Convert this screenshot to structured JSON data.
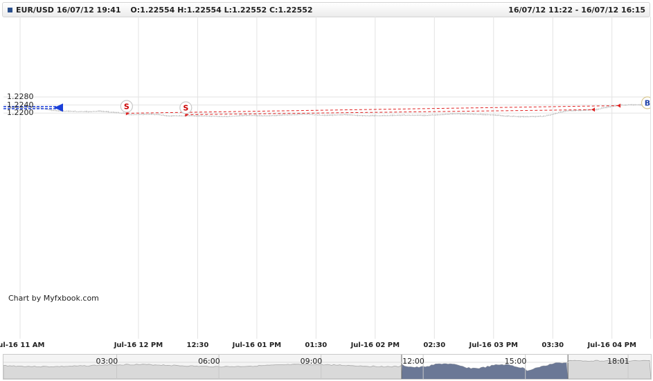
{
  "header": {
    "symbol": "EUR/USD",
    "datetime": "16/07/12 19:41",
    "ohlc": "O:1.22554 H:1.22554 L:1.22552 C:1.22552",
    "range": "16/07/12 11:22 - 16/07/12 16:15"
  },
  "credit": "Chart by Myfxbook.com",
  "colors": {
    "candle": "#b8b8b8",
    "grid": "#e3e3e3",
    "trade_line": "#e02020",
    "sell_marker": "#cc0000",
    "buy_marker": "#2244aa",
    "price_arrow": "#1a3fd9",
    "navigator_selected": "#6b7896"
  },
  "chart_data": {
    "type": "candlestick",
    "ylim": [
      1.2159,
      1.232
    ],
    "y_ticks": [
      "1.2280",
      "1.2240",
      "1.2200"
    ],
    "x_range": [
      "11:00",
      "16:18"
    ],
    "x_ticks": [
      {
        "label": "Jul-16 11 AM",
        "t": "11:00"
      },
      {
        "label": "Jul-16 12 PM",
        "t": "12:00"
      },
      {
        "label": "12:30",
        "t": "12:30"
      },
      {
        "label": "Jul-16 01 PM",
        "t": "13:00"
      },
      {
        "label": "01:30",
        "t": "13:30"
      },
      {
        "label": "Jul-16 02 PM",
        "t": "14:00"
      },
      {
        "label": "02:30",
        "t": "14:30"
      },
      {
        "label": "Jul-16 03 PM",
        "t": "15:00"
      },
      {
        "label": "03:30",
        "t": "15:30"
      },
      {
        "label": "Jul-16 04 PM",
        "t": "16:00"
      }
    ],
    "price_path": [
      [
        "10:55",
        1.2226
      ],
      [
        "11:00",
        1.2229
      ],
      [
        "11:10",
        1.2228
      ],
      [
        "11:12",
        1.2222
      ],
      [
        "11:17",
        1.2213
      ],
      [
        "11:25",
        1.2209
      ],
      [
        "11:35",
        1.2207
      ],
      [
        "11:40",
        1.221
      ],
      [
        "11:45",
        1.2206
      ],
      [
        "11:53",
        1.2199
      ],
      [
        "11:55",
        1.2192
      ],
      [
        "12:05",
        1.2194
      ],
      [
        "12:10",
        1.2193
      ],
      [
        "12:15",
        1.2186
      ],
      [
        "12:25",
        1.2187
      ],
      [
        "12:35",
        1.2185
      ],
      [
        "12:45",
        1.2183
      ],
      [
        "12:55",
        1.2189
      ],
      [
        "13:05",
        1.2186
      ],
      [
        "13:15",
        1.2191
      ],
      [
        "13:25",
        1.2194
      ],
      [
        "13:35",
        1.2189
      ],
      [
        "13:45",
        1.2192
      ],
      [
        "13:55",
        1.2187
      ],
      [
        "14:05",
        1.2188
      ],
      [
        "14:15",
        1.219
      ],
      [
        "14:25",
        1.2189
      ],
      [
        "14:35",
        1.2193
      ],
      [
        "14:40",
        1.2197
      ],
      [
        "14:50",
        1.2195
      ],
      [
        "15:00",
        1.2191
      ],
      [
        "15:05",
        1.2186
      ],
      [
        "15:15",
        1.2182
      ],
      [
        "15:25",
        1.2184
      ],
      [
        "15:30",
        1.2193
      ],
      [
        "15:33",
        1.2203
      ],
      [
        "15:37",
        1.2211
      ],
      [
        "15:45",
        1.2214
      ],
      [
        "15:53",
        1.2218
      ],
      [
        "15:55",
        1.2225
      ],
      [
        "16:00",
        1.2233
      ],
      [
        "16:05",
        1.224
      ],
      [
        "16:10",
        1.2242
      ],
      [
        "16:18",
        1.2241
      ]
    ],
    "trades": [
      {
        "type": "sell",
        "label": "S",
        "open_time": "11:54",
        "open_price": 1.2199,
        "close_time": "16:04",
        "close_price": 1.2237
      },
      {
        "type": "sell",
        "label": "S",
        "open_time": "12:24",
        "open_price": 1.2192,
        "close_time": "15:51",
        "close_price": 1.2217
      }
    ],
    "buy_marker": {
      "label": "B",
      "time": "16:18",
      "price": 1.2251
    },
    "price_marker": {
      "price": 1.2227
    },
    "navigator": {
      "labels": [
        "03:00",
        "06:00",
        "09:00",
        "12:00",
        "15:00",
        "18:01"
      ],
      "selected_range": [
        "11:22",
        "16:15"
      ]
    }
  }
}
